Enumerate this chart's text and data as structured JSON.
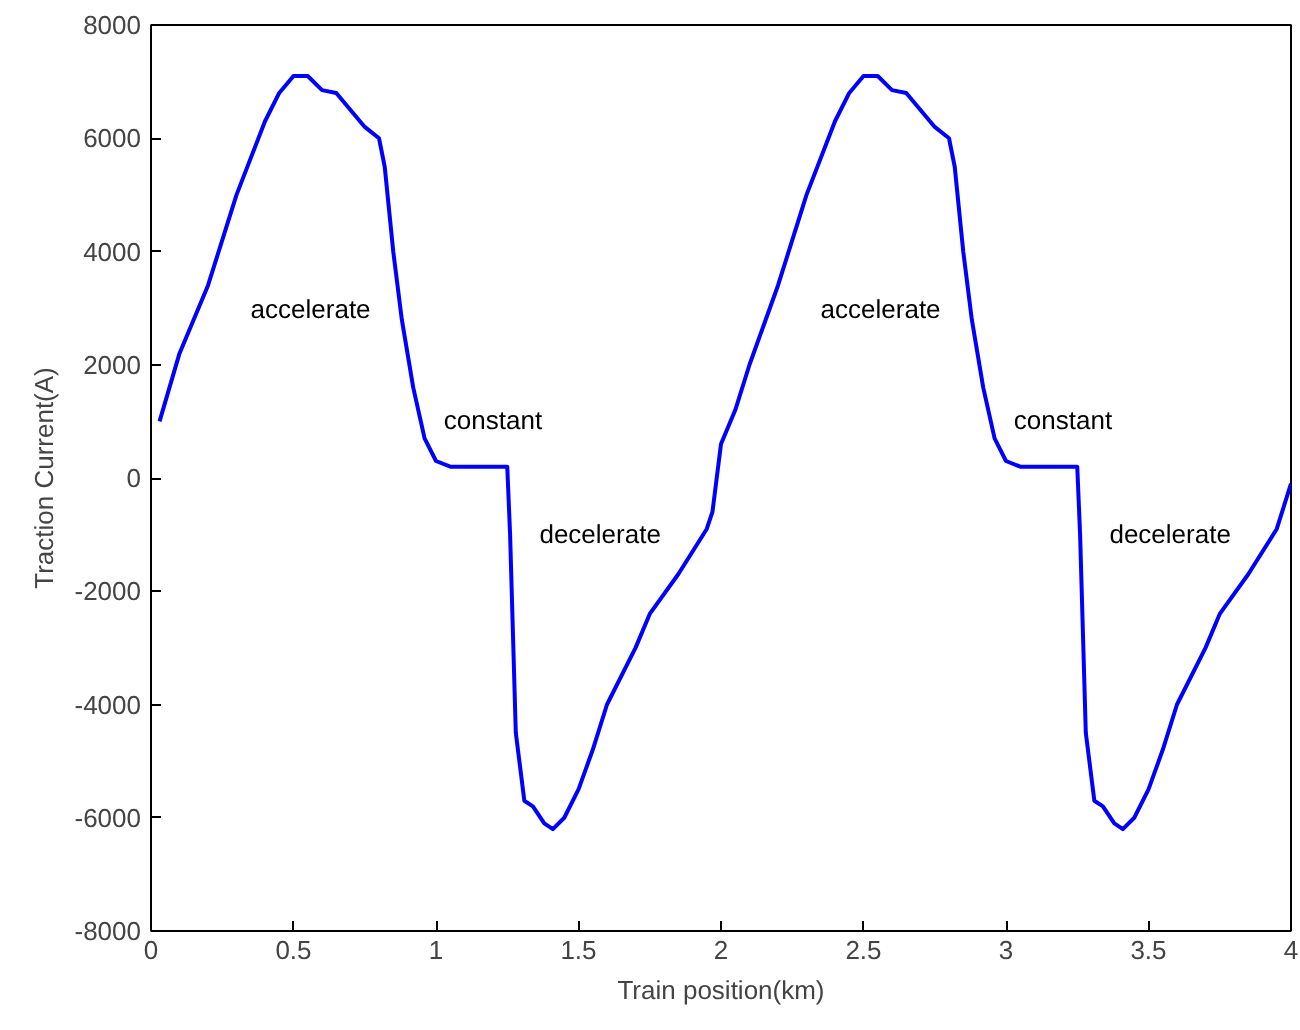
{
  "chart_data": {
    "type": "line",
    "xlabel": "Train position(km)",
    "ylabel": "Traction Current(A)",
    "x": [
      0.03,
      0.1,
      0.2,
      0.25,
      0.3,
      0.4,
      0.45,
      0.5,
      0.55,
      0.6,
      0.65,
      0.7,
      0.75,
      0.8,
      0.82,
      0.85,
      0.88,
      0.92,
      0.96,
      1.0,
      1.05,
      1.25,
      1.26,
      1.28,
      1.31,
      1.34,
      1.38,
      1.41,
      1.45,
      1.5,
      1.55,
      1.6,
      1.7,
      1.75,
      1.85,
      1.95,
      1.97,
      2.0,
      2.05,
      2.1,
      2.2,
      2.25,
      2.3,
      2.4,
      2.45,
      2.5,
      2.55,
      2.6,
      2.65,
      2.7,
      2.75,
      2.8,
      2.82,
      2.85,
      2.88,
      2.92,
      2.96,
      3.0,
      3.05,
      3.25,
      3.26,
      3.28,
      3.31,
      3.34,
      3.38,
      3.41,
      3.45,
      3.5,
      3.55,
      3.6,
      3.7,
      3.75,
      3.85,
      3.95,
      4.0
    ],
    "series": [
      {
        "color": "#0000ff",
        "values": [
          1000,
          2200,
          3400,
          4200,
          5000,
          6300,
          6800,
          7100,
          7100,
          6850,
          6800,
          6500,
          6200,
          6000,
          5500,
          4000,
          2800,
          1600,
          700,
          300,
          200,
          200,
          -1000,
          -4500,
          -5700,
          -5800,
          -6100,
          -6200,
          -6000,
          -5500,
          -4800,
          -4000,
          -3000,
          -2400,
          -1700,
          -900,
          -600,
          600,
          1200,
          2000,
          3400,
          4200,
          5000,
          6300,
          6800,
          7100,
          7100,
          6850,
          6800,
          6500,
          6200,
          6000,
          5500,
          4000,
          2800,
          1600,
          700,
          300,
          200,
          200,
          -1000,
          -4500,
          -5700,
          -5800,
          -6100,
          -6200,
          -6000,
          -5500,
          -4800,
          -4000,
          -3000,
          -2400,
          -1700,
          -900,
          -100
        ]
      }
    ],
    "xlim": [
      0,
      4
    ],
    "ylim": [
      -8000,
      8000
    ],
    "xticks": [
      0,
      0.5,
      1,
      1.5,
      2,
      2.5,
      3,
      3.5,
      4
    ],
    "yticks": [
      -8000,
      -6000,
      -4000,
      -2000,
      0,
      2000,
      4000,
      6000,
      8000
    ],
    "grid": false,
    "line_style": "solid",
    "annotations": [
      "accelerate",
      "constant",
      "decelerate",
      "accelerate",
      "constant",
      "decelerate"
    ]
  }
}
